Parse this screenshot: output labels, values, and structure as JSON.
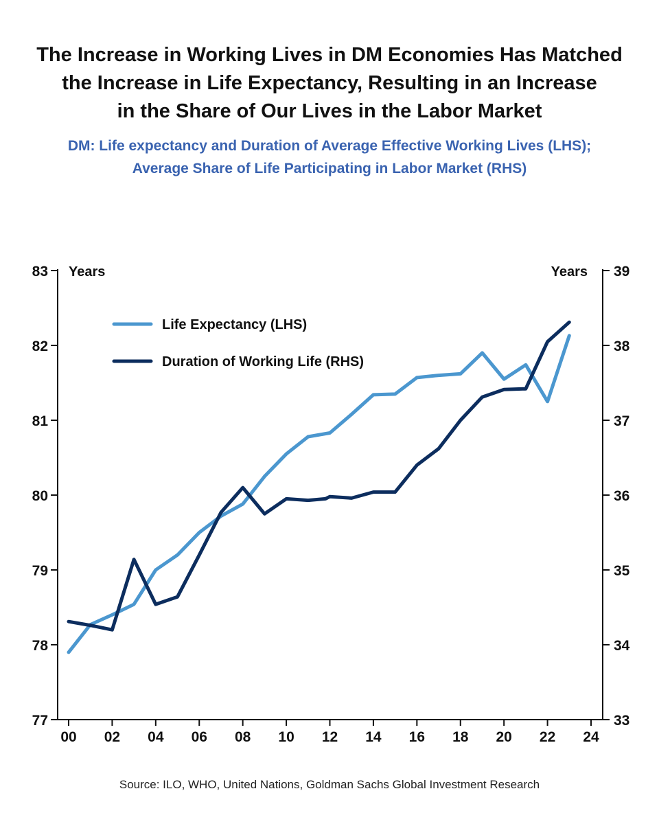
{
  "title_lines": [
    "The Increase in Working Lives in DM Economies Has Matched",
    "the Increase in Life Expectancy, Resulting in an Increase",
    "in the Share of Our Lives in the Labor Market"
  ],
  "subtitle_lines": [
    "DM: Life expectancy and Duration of Average Effective Working Lives (LHS);",
    "Average Share of Life Participating in Labor Market (RHS)"
  ],
  "source": "Source: ILO, WHO, United Nations, Goldman Sachs Global Investment Research",
  "colors": {
    "life_expectancy": "#4b97cf",
    "working_life": "#0c2d5e",
    "axis": "#111111"
  },
  "chart_data": {
    "type": "line",
    "left_axis_label": "Years",
    "right_axis_label": "Years",
    "ylim_left": [
      77,
      83
    ],
    "ylim_right": [
      33,
      39
    ],
    "yticks_left": [
      "83",
      "82",
      "81",
      "80",
      "79",
      "78",
      "77"
    ],
    "yticks_right": [
      "39",
      "38",
      "37",
      "36",
      "35",
      "34",
      "33"
    ],
    "xlim": [
      2000,
      2024
    ],
    "xticks": [
      "00",
      "02",
      "04",
      "06",
      "08",
      "10",
      "12",
      "14",
      "16",
      "18",
      "20",
      "22",
      "24"
    ],
    "legend_position": "top-left",
    "series": [
      {
        "name": "Life Expectancy (LHS)",
        "axis": "left",
        "color": "#4b97cf",
        "x": [
          2000,
          2001,
          2002,
          2003,
          2004,
          2005,
          2006,
          2007,
          2008,
          2009,
          2010,
          2011,
          2012,
          2013,
          2014,
          2015,
          2016,
          2017,
          2018,
          2019,
          2020,
          2021,
          2022,
          2023
        ],
        "y": [
          77.9,
          78.27,
          78.4,
          78.54,
          79.0,
          79.2,
          79.5,
          79.72,
          79.88,
          80.25,
          80.55,
          80.78,
          80.83,
          81.08,
          81.34,
          81.35,
          81.57,
          81.6,
          81.62,
          81.9,
          81.55,
          81.74,
          81.25,
          82.13
        ]
      },
      {
        "name": "Duration of Working Life (RHS)",
        "axis": "right",
        "color": "#0c2d5e",
        "x": [
          2000,
          2001,
          2002,
          2003,
          2004,
          2005,
          2006,
          2007,
          2008,
          2009,
          2010,
          2011,
          2011.8,
          2012,
          2013,
          2014,
          2015,
          2016,
          2017,
          2018,
          2019,
          2020,
          2021,
          2022,
          2023
        ],
        "y": [
          34.31,
          34.26,
          34.2,
          35.14,
          34.54,
          34.64,
          35.2,
          35.77,
          36.1,
          35.75,
          35.95,
          35.93,
          35.95,
          35.98,
          35.96,
          36.04,
          36.04,
          36.4,
          36.62,
          37.0,
          37.31,
          37.41,
          37.42,
          38.05,
          38.31
        ]
      }
    ]
  }
}
